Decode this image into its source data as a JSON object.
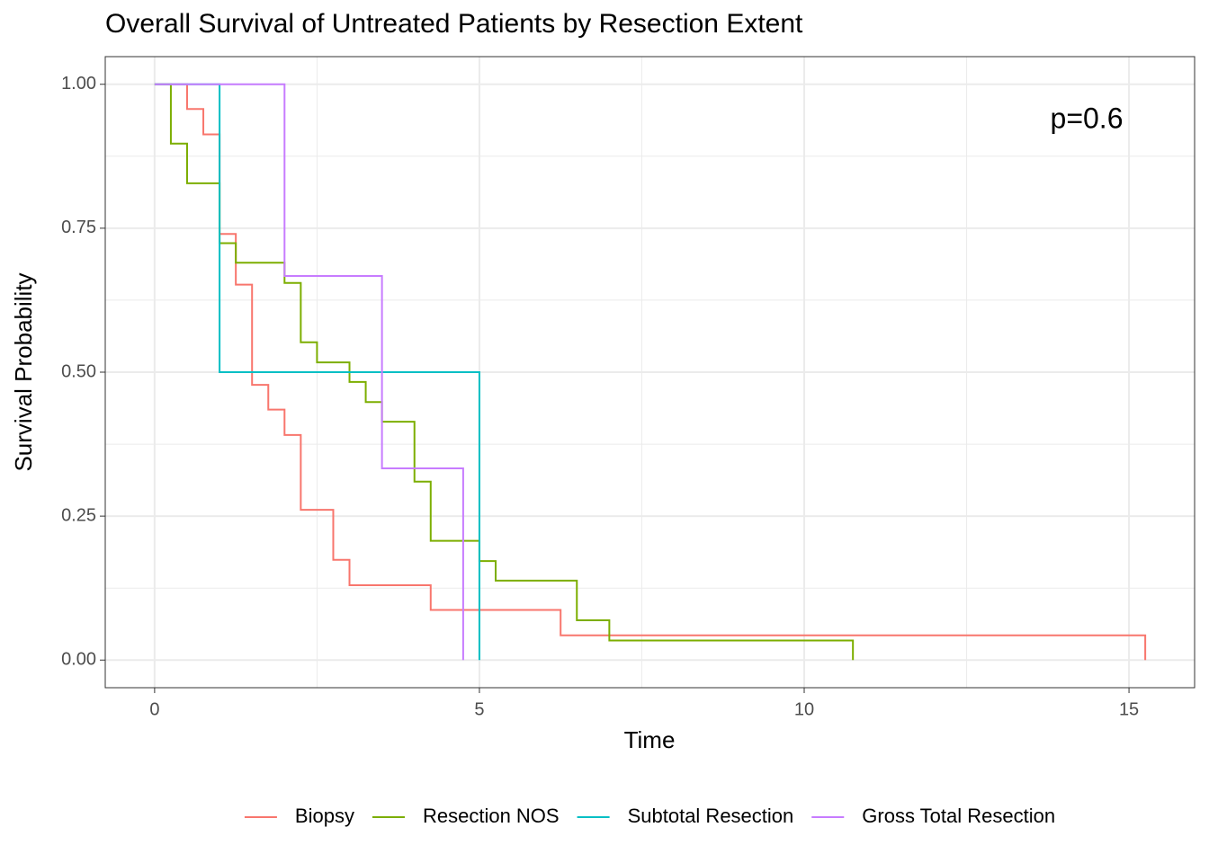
{
  "chart_data": {
    "type": "step",
    "title": "Overall Survival of Untreated Patients by Resection Extent",
    "x_label": "Time",
    "y_label": "Survival Probability",
    "annotation": "p=0.6",
    "series": [
      {
        "name": "Biopsy",
        "color": "#F8766D",
        "x": [
          0,
          0.5,
          0.75,
          1.0,
          1.25,
          1.5,
          1.75,
          2.0,
          2.25,
          2.75,
          3.0,
          4.25,
          6.25,
          15.25
        ],
        "values": [
          1.0,
          0.957,
          0.913,
          0.74,
          0.652,
          0.478,
          0.435,
          0.391,
          0.261,
          0.174,
          0.13,
          0.087,
          0.043,
          0
        ]
      },
      {
        "name": "Resection NOS",
        "color": "#7CAE00",
        "x": [
          0,
          0.25,
          0.5,
          1.0,
          1.25,
          2.0,
          2.25,
          2.5,
          3.0,
          3.25,
          3.5,
          4.0,
          4.25,
          5.0,
          5.25,
          6.5,
          7.0,
          10.75
        ],
        "values": [
          1.0,
          0.897,
          0.828,
          0.724,
          0.69,
          0.655,
          0.552,
          0.517,
          0.483,
          0.448,
          0.414,
          0.31,
          0.207,
          0.172,
          0.138,
          0.069,
          0.034,
          0
        ]
      },
      {
        "name": "Subtotal Resection",
        "color": "#00BFC4",
        "x": [
          0,
          1.0,
          5.0
        ],
        "values": [
          1.0,
          0.5,
          0
        ]
      },
      {
        "name": "Gross Total Resection",
        "color": "#C77CFF",
        "x": [
          0,
          2.0,
          3.5,
          4.75
        ],
        "values": [
          1.0,
          0.667,
          0.333,
          0
        ]
      }
    ],
    "xlim": [
      -0.76,
      16.01
    ],
    "ylim": [
      -0.048,
      1.048
    ],
    "xticks": [
      0,
      5,
      10,
      15
    ],
    "yticks": [
      {
        "value": 0,
        "label": "0.00"
      },
      {
        "value": 0.25,
        "label": "0.25"
      },
      {
        "value": 0.5,
        "label": "0.50"
      },
      {
        "value": 0.75,
        "label": "0.75"
      },
      {
        "value": 1,
        "label": "1.00"
      }
    ],
    "x_minor_ticks": [
      2.5,
      7.5,
      12.5
    ],
    "y_minor_ticks": [
      0.125,
      0.375,
      0.625,
      0.875
    ],
    "grid": true,
    "legend_position": "bottom"
  }
}
